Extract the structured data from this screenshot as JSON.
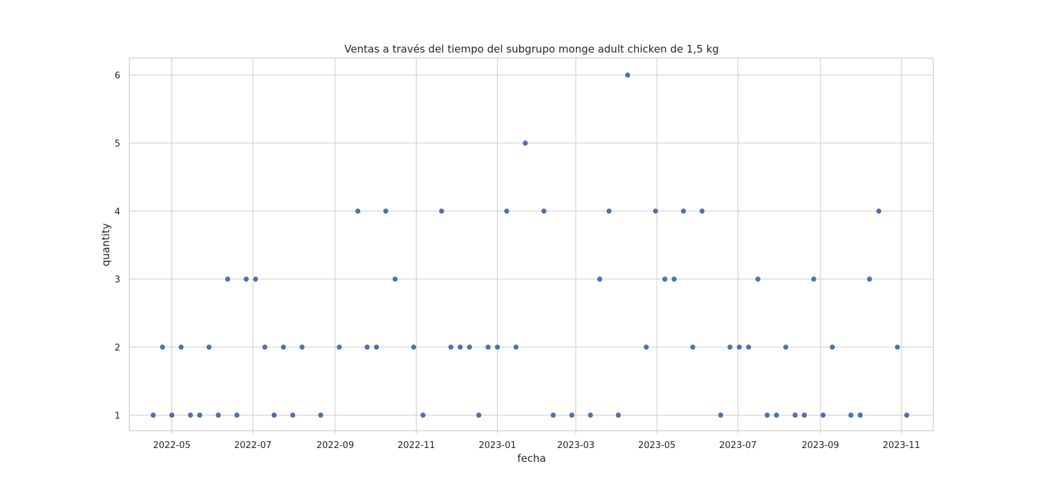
{
  "chart_data": {
    "type": "scatter",
    "title": "Ventas a través del tiempo del subgrupo monge adult chicken de 1,5 kg",
    "xlabel": "fecha",
    "ylabel": "quantity",
    "x_type": "date",
    "xlim": [
      "2022-03-30",
      "2023-11-25"
    ],
    "ylim": [
      0.77,
      6.25
    ],
    "x_ticks": [
      "2022-05-01",
      "2022-07-01",
      "2022-09-01",
      "2022-11-01",
      "2023-01-01",
      "2023-03-01",
      "2023-05-01",
      "2023-07-01",
      "2023-09-01",
      "2023-11-01"
    ],
    "x_tick_labels": [
      "2022-05",
      "2022-07",
      "2022-09",
      "2022-11",
      "2023-01",
      "2023-03",
      "2023-05",
      "2023-07",
      "2023-09",
      "2023-11"
    ],
    "y_ticks": [
      1,
      2,
      3,
      4,
      5,
      6
    ],
    "grid": true,
    "marker_color": "#4c72b0",
    "points": [
      {
        "x": "2022-04-17",
        "y": 1
      },
      {
        "x": "2022-04-24",
        "y": 2
      },
      {
        "x": "2022-05-01",
        "y": 1
      },
      {
        "x": "2022-05-08",
        "y": 2
      },
      {
        "x": "2022-05-15",
        "y": 1
      },
      {
        "x": "2022-05-22",
        "y": 1
      },
      {
        "x": "2022-05-29",
        "y": 2
      },
      {
        "x": "2022-06-05",
        "y": 1
      },
      {
        "x": "2022-06-12",
        "y": 3
      },
      {
        "x": "2022-06-19",
        "y": 1
      },
      {
        "x": "2022-06-26",
        "y": 3
      },
      {
        "x": "2022-07-03",
        "y": 3
      },
      {
        "x": "2022-07-10",
        "y": 2
      },
      {
        "x": "2022-07-17",
        "y": 1
      },
      {
        "x": "2022-07-24",
        "y": 2
      },
      {
        "x": "2022-07-31",
        "y": 1
      },
      {
        "x": "2022-08-07",
        "y": 2
      },
      {
        "x": "2022-08-21",
        "y": 1
      },
      {
        "x": "2022-09-04",
        "y": 2
      },
      {
        "x": "2022-09-18",
        "y": 4
      },
      {
        "x": "2022-09-25",
        "y": 2
      },
      {
        "x": "2022-10-02",
        "y": 2
      },
      {
        "x": "2022-10-09",
        "y": 4
      },
      {
        "x": "2022-10-16",
        "y": 3
      },
      {
        "x": "2022-10-30",
        "y": 2
      },
      {
        "x": "2022-11-06",
        "y": 1
      },
      {
        "x": "2022-11-20",
        "y": 4
      },
      {
        "x": "2022-11-27",
        "y": 2
      },
      {
        "x": "2022-12-04",
        "y": 2
      },
      {
        "x": "2022-12-11",
        "y": 2
      },
      {
        "x": "2022-12-18",
        "y": 1
      },
      {
        "x": "2022-12-25",
        "y": 2
      },
      {
        "x": "2023-01-01",
        "y": 2
      },
      {
        "x": "2023-01-08",
        "y": 4
      },
      {
        "x": "2023-01-15",
        "y": 2
      },
      {
        "x": "2023-01-22",
        "y": 5
      },
      {
        "x": "2023-02-05",
        "y": 4
      },
      {
        "x": "2023-02-12",
        "y": 1
      },
      {
        "x": "2023-02-26",
        "y": 1
      },
      {
        "x": "2023-03-12",
        "y": 1
      },
      {
        "x": "2023-03-19",
        "y": 3
      },
      {
        "x": "2023-03-26",
        "y": 4
      },
      {
        "x": "2023-04-02",
        "y": 1
      },
      {
        "x": "2023-04-09",
        "y": 6
      },
      {
        "x": "2023-04-23",
        "y": 2
      },
      {
        "x": "2023-04-30",
        "y": 4
      },
      {
        "x": "2023-05-07",
        "y": 3
      },
      {
        "x": "2023-05-14",
        "y": 3
      },
      {
        "x": "2023-05-21",
        "y": 4
      },
      {
        "x": "2023-05-28",
        "y": 2
      },
      {
        "x": "2023-06-04",
        "y": 4
      },
      {
        "x": "2023-06-18",
        "y": 1
      },
      {
        "x": "2023-06-25",
        "y": 2
      },
      {
        "x": "2023-07-02",
        "y": 2
      },
      {
        "x": "2023-07-09",
        "y": 2
      },
      {
        "x": "2023-07-16",
        "y": 3
      },
      {
        "x": "2023-07-23",
        "y": 1
      },
      {
        "x": "2023-07-30",
        "y": 1
      },
      {
        "x": "2023-08-06",
        "y": 2
      },
      {
        "x": "2023-08-13",
        "y": 1
      },
      {
        "x": "2023-08-20",
        "y": 1
      },
      {
        "x": "2023-08-27",
        "y": 3
      },
      {
        "x": "2023-09-03",
        "y": 1
      },
      {
        "x": "2023-09-10",
        "y": 2
      },
      {
        "x": "2023-09-24",
        "y": 1
      },
      {
        "x": "2023-10-01",
        "y": 1
      },
      {
        "x": "2023-10-08",
        "y": 3
      },
      {
        "x": "2023-10-15",
        "y": 4
      },
      {
        "x": "2023-10-29",
        "y": 2
      },
      {
        "x": "2023-11-05",
        "y": 1
      }
    ]
  }
}
